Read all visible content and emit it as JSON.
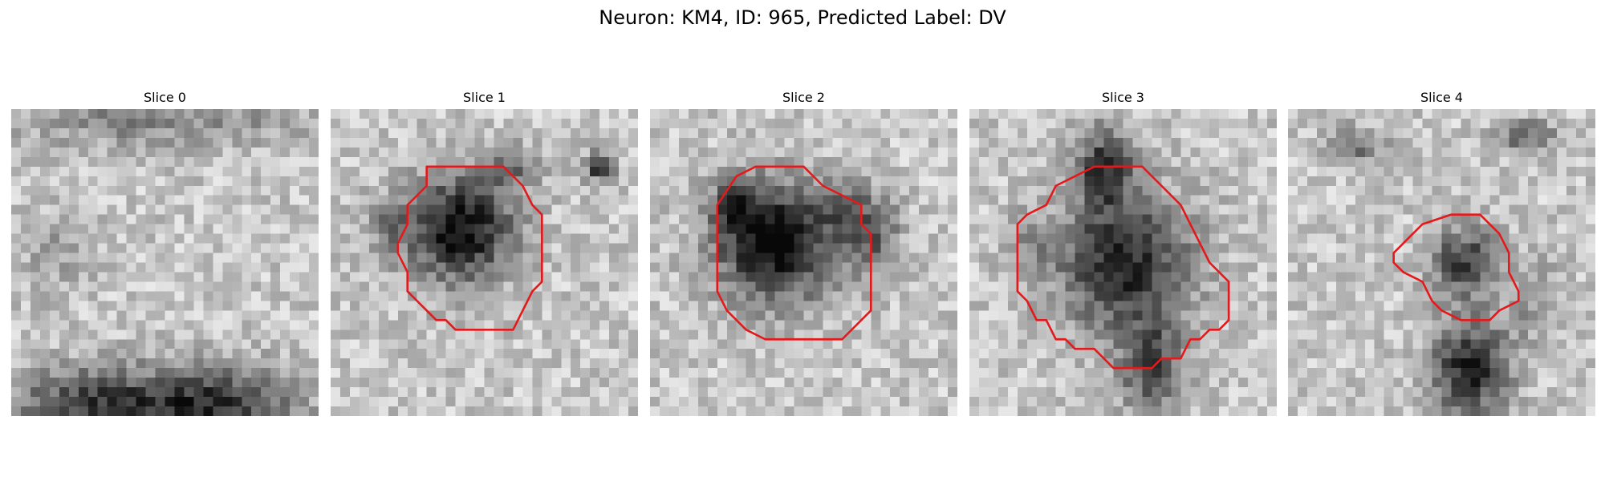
{
  "figure": {
    "title": "Neuron: KM4, ID: 965, Predicted Label: DV"
  },
  "panels": [
    {
      "title": "Slice 0",
      "has_outline": false,
      "outline_color": "#e31a1c"
    },
    {
      "title": "Slice 1",
      "has_outline": true,
      "outline_color": "#e31a1c"
    },
    {
      "title": "Slice 2",
      "has_outline": true,
      "outline_color": "#e31a1c"
    },
    {
      "title": "Slice 3",
      "has_outline": true,
      "outline_color": "#e31a1c"
    },
    {
      "title": "Slice 4",
      "has_outline": true,
      "outline_color": "#e31a1c"
    }
  ]
}
